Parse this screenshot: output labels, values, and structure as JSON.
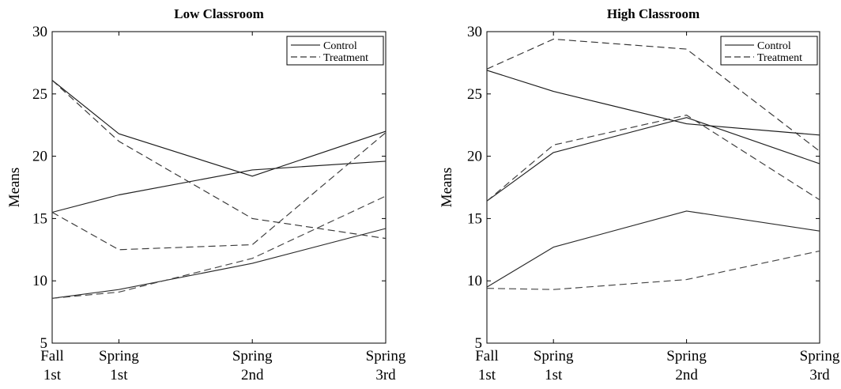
{
  "chart_data": [
    {
      "type": "line",
      "title": "Low Classroom",
      "ylabel": "Means",
      "xlabel": "",
      "ylim": [
        5,
        30
      ],
      "yticks": [
        "5",
        "10",
        "15",
        "20",
        "25",
        "30"
      ],
      "categories": [
        [
          "Fall",
          "1st"
        ],
        [
          "Spring",
          "1st"
        ],
        [
          "Spring",
          "2nd"
        ],
        [
          "Spring",
          "3rd"
        ]
      ],
      "x": [
        0,
        1,
        3,
        5
      ],
      "legend": {
        "position": "top-right",
        "entries": [
          "Control",
          "Treatment"
        ]
      },
      "grid": false,
      "series": [
        {
          "group": "Control",
          "values": [
            26.1,
            21.8,
            18.4,
            22.0
          ]
        },
        {
          "group": "Control",
          "values": [
            15.5,
            16.9,
            18.9,
            19.6
          ]
        },
        {
          "group": "Control",
          "values": [
            8.6,
            9.3,
            11.4,
            14.2
          ]
        },
        {
          "group": "Treatment",
          "values": [
            26.1,
            21.2,
            15.0,
            13.4
          ]
        },
        {
          "group": "Treatment",
          "values": [
            15.5,
            12.5,
            12.9,
            21.9
          ]
        },
        {
          "group": "Treatment",
          "values": [
            8.6,
            9.1,
            11.8,
            16.8
          ]
        }
      ]
    },
    {
      "type": "line",
      "title": "High Classroom",
      "ylabel": "Means",
      "xlabel": "",
      "ylim": [
        5,
        30
      ],
      "yticks": [
        "5",
        "10",
        "15",
        "20",
        "25",
        "30"
      ],
      "categories": [
        [
          "Fall",
          "1st"
        ],
        [
          "Spring",
          "1st"
        ],
        [
          "Spring",
          "2nd"
        ],
        [
          "Spring",
          "3rd"
        ]
      ],
      "x": [
        0,
        1,
        3,
        5
      ],
      "legend": {
        "position": "top-right",
        "entries": [
          "Control",
          "Treatment"
        ]
      },
      "grid": false,
      "series": [
        {
          "group": "Control",
          "values": [
            26.9,
            25.2,
            22.6,
            21.7
          ]
        },
        {
          "group": "Control",
          "values": [
            16.4,
            20.3,
            23.1,
            19.4
          ]
        },
        {
          "group": "Control",
          "values": [
            9.5,
            12.7,
            15.6,
            14.0
          ]
        },
        {
          "group": "Treatment",
          "values": [
            27.0,
            29.4,
            28.6,
            20.4
          ]
        },
        {
          "group": "Treatment",
          "values": [
            16.4,
            20.9,
            23.3,
            16.5
          ]
        },
        {
          "group": "Treatment",
          "values": [
            9.4,
            9.3,
            10.1,
            12.4
          ]
        }
      ]
    }
  ]
}
